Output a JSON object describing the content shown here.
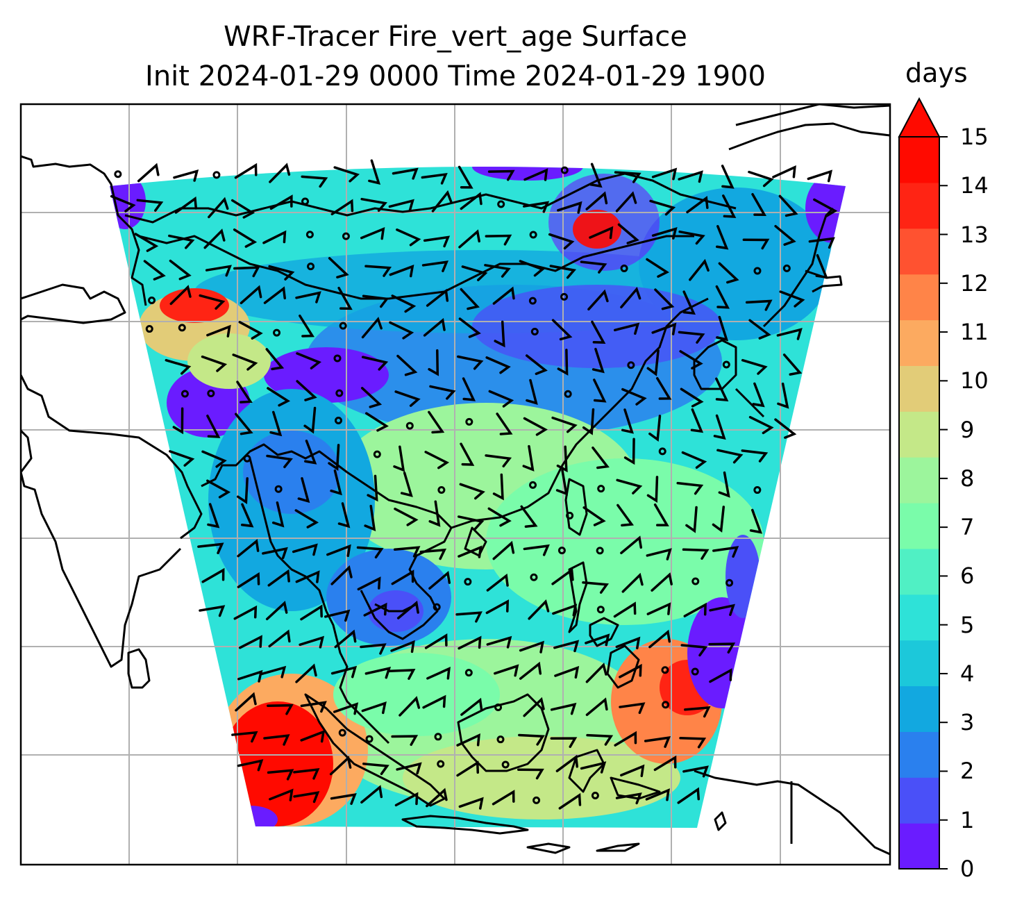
{
  "title_line1": "WRF-Tracer Fire_vert_age Surface",
  "title_line2": "Init 2024-01-29 0000 Time 2024-01-29 1900",
  "colorbar": {
    "unit": "days",
    "ticks": [
      "0",
      "1",
      "2",
      "3",
      "4",
      "5",
      "6",
      "7",
      "8",
      "9",
      "10",
      "11",
      "12",
      "13",
      "14",
      "15"
    ],
    "extend": "max",
    "colors": [
      "#6a1cff",
      "#4a50f8",
      "#2a80ee",
      "#12a8e0",
      "#1cc8da",
      "#2ee2d8",
      "#50f0c4",
      "#7afcaa",
      "#9cf59c",
      "#c4e888",
      "#e2cc78",
      "#fcaa60",
      "#ff8448",
      "#ff5230",
      "#ff2414",
      "#ff0a00"
    ],
    "extend_color": "#ff0a00"
  },
  "map": {
    "field": "Fire_vert_age",
    "level": "Surface",
    "colors": {
      "outside": "#ffffff",
      "gridline": "#b0b0b0",
      "coast": "#000000",
      "wind": "#000000"
    }
  }
}
